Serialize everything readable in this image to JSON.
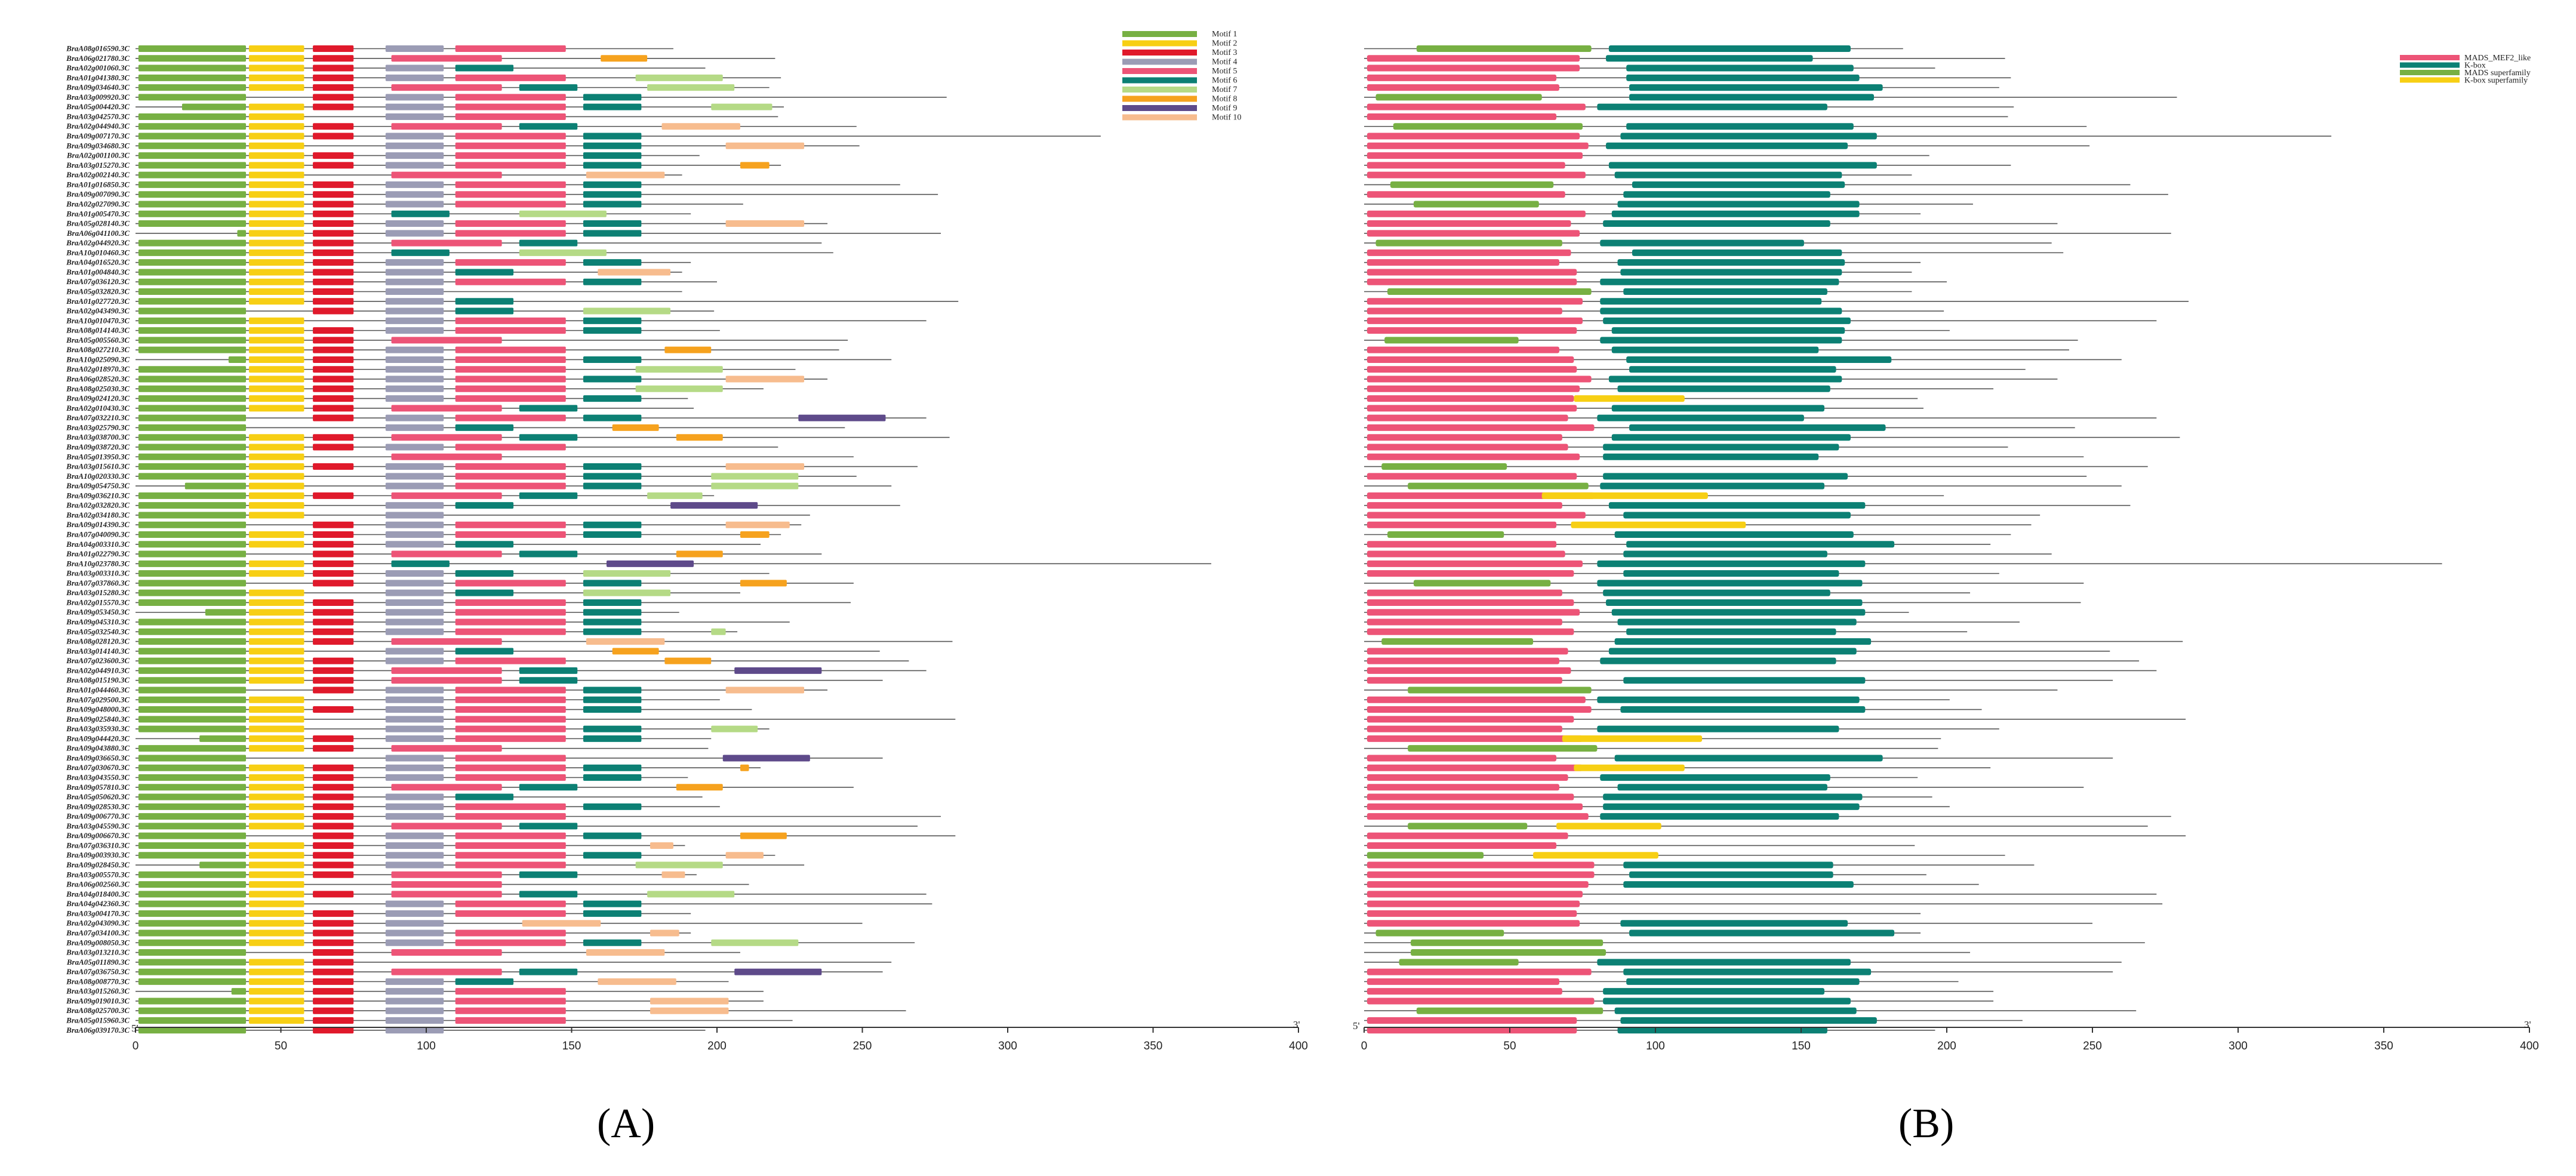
{
  "figure": {
    "panel_a_label": "(A)",
    "panel_b_label": "(B)",
    "five_prime": "5'",
    "three_prime": "3'",
    "x_ticks": [
      0,
      50,
      100,
      150,
      200,
      250,
      300,
      350,
      400
    ]
  },
  "motif_legend": [
    {
      "name": "Motif 1",
      "color": "#77b043"
    },
    {
      "name": "Motif 2",
      "color": "#f7cf14"
    },
    {
      "name": "Motif 3",
      "color": "#e0192b"
    },
    {
      "name": "Motif 4",
      "color": "#9b9cb5"
    },
    {
      "name": "Motif 5",
      "color": "#ed5477"
    },
    {
      "name": "Motif 6",
      "color": "#0c8074"
    },
    {
      "name": "Motif 7",
      "color": "#b5da86"
    },
    {
      "name": "Motif 8",
      "color": "#f6a21e"
    },
    {
      "name": "Motif 9",
      "color": "#5e4a8a"
    },
    {
      "name": "Motif 10",
      "color": "#f7bc8e"
    }
  ],
  "domain_legend": [
    {
      "name": "MADS_MEF2_like",
      "color": "#ed5477"
    },
    {
      "name": "K-box",
      "color": "#0c8074"
    },
    {
      "name": "MADS superfamily",
      "color": "#77b043"
    },
    {
      "name": "K-box superfamily",
      "color": "#f7cf14"
    }
  ],
  "genes": [
    "BraA08g016590.3C",
    "BraA06g021780.3C",
    "BraA02g001060.3C",
    "BraA01g041380.3C",
    "BraA09g034640.3C",
    "BraA03g009920.3C",
    "BraA05g004420.3C",
    "BraA03g042570.3C",
    "BraA02g044940.3C",
    "BraA09g007170.3C",
    "BraA09g034680.3C",
    "BraA02g001100.3C",
    "BraA03g015270.3C",
    "BraA02g002140.3C",
    "BraA01g016850.3C",
    "BraA09g007090.3C",
    "BraA02g027090.3C",
    "BraA01g005470.3C",
    "BraA05g028140.3C",
    "BraA06g041100.3C",
    "BraA02g044920.3C",
    "BraA10g010460.3C",
    "BraA04g016520.3C",
    "BraA01g004840.3C",
    "BraA07g036120.3C",
    "BraA05g032820.3C",
    "BraA01g027720.3C",
    "BraA02g043490.3C",
    "BraA10g010470.3C",
    "BraA08g014140.3C",
    "BraA05g005560.3C",
    "BraA08g027210.3C",
    "BraA10g025090.3C",
    "BraA02g018970.3C",
    "BraA06g028520.3C",
    "BraA08g025030.3C",
    "BraA09g024120.3C",
    "BraA02g010430.3C",
    "BraA07g032210.3C",
    "BraA03g025790.3C",
    "BraA03g038700.3C",
    "BraA09g038720.3C",
    "BraA05g013950.3C",
    "BraA03g015610.3C",
    "BraA10g020330.3C",
    "BraA09g054750.3C",
    "BraA09g036210.3C",
    "BraA02g032820.3C",
    "BraA02g034180.3C",
    "BraA09g014390.3C",
    "BraA07g040090.3C",
    "BraA04g003310.3C",
    "BraA01g022790.3C",
    "BraA10g023780.3C",
    "BraA03g003310.3C",
    "BraA07g037860.3C",
    "BraA03g015280.3C",
    "BraA02g015570.3C",
    "BraA09g053450.3C",
    "BraA09g045310.3C",
    "BraA05g032540.3C",
    "BraA08g028120.3C",
    "BraA03g014140.3C",
    "BraA07g023600.3C",
    "BraA02g044910.3C",
    "BraA08g015190.3C",
    "BraA01g044460.3C",
    "BraA07g029500.3C",
    "BraA09g048000.3C",
    "BraA09g025840.3C",
    "BraA03g035930.3C",
    "BraA09g044420.3C",
    "BraA09g043880.3C",
    "BraA09g036650.3C",
    "BraA07g030670.3C",
    "BraA03g043550.3C",
    "BraA09g057810.3C",
    "BraA05g050620.3C",
    "BraA09g028530.3C",
    "BraA09g006770.3C",
    "BraA03g045590.3C",
    "BraA09g006670.3C",
    "BraA07g036310.3C",
    "BraA09g003930.3C",
    "BraA09g028450.3C",
    "BraA03g005570.3C",
    "BraA06g002560.3C",
    "BraA04g018400.3C",
    "BraA04g042360.3C",
    "BraA03g004170.3C",
    "BraA02g043090.3C",
    "BraA07g034100.3C",
    "BraA09g008050.3C",
    "BraA03g013210.3C",
    "BraA05g011890.3C",
    "BraA07g036750.3C",
    "BraA08g008770.3C",
    "BraA03g015260.3C",
    "BraA09g019010.3C",
    "BraA08g025700.3C",
    "BraA05g015960.3C",
    "BraA06g039170.3C"
  ]
}
